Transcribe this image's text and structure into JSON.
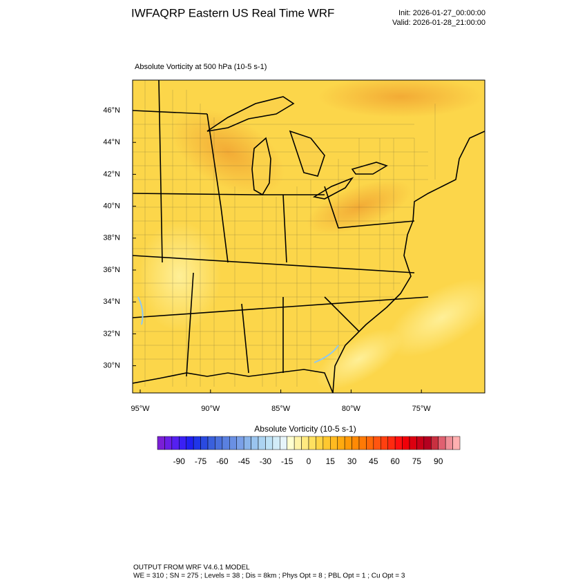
{
  "header": {
    "title": "IWFAQRP Eastern US Real Time WRF",
    "init": "Init: 2026-01-27_00:00:00",
    "valid": "Valid: 2026-01-28_21:00:00"
  },
  "map": {
    "title": "Absolute Vorticity at 500 hPa   (10-5 s-1)",
    "lat_labels": [
      "46°N",
      "44°N",
      "42°N",
      "40°N",
      "38°N",
      "36°N",
      "34°N",
      "32°N",
      "30°N"
    ],
    "lon_labels": [
      "95°W",
      "90°W",
      "85°W",
      "80°W",
      "75°W"
    ]
  },
  "colorbar": {
    "title": "Absolute Vorticity  (10-5 s-1)",
    "labels": [
      -90,
      -75,
      -60,
      -45,
      -30,
      -15,
      0,
      15,
      30,
      45,
      60,
      75,
      90
    ],
    "colors": [
      "#7a1fd6",
      "#6a1fe6",
      "#5520f0",
      "#3a20f5",
      "#2020f0",
      "#2035e8",
      "#2a4ae0",
      "#3a60dc",
      "#4a70dc",
      "#5a80e0",
      "#6a90e4",
      "#7aa0e8",
      "#8ab4ea",
      "#9ac4ee",
      "#acd4f2",
      "#bee2f6",
      "#d2ecf8",
      "#e6f4fa",
      "#ffffd0",
      "#fff4a8",
      "#ffea80",
      "#ffe060",
      "#ffd445",
      "#ffc830",
      "#ffba20",
      "#ffaa10",
      "#ff9a08",
      "#ff8a05",
      "#ff7a05",
      "#ff6808",
      "#ff5510",
      "#ff4010",
      "#ff2a10",
      "#ff1010",
      "#f00008",
      "#dc0010",
      "#c80018",
      "#b40020",
      "#c83040",
      "#e06070",
      "#f09098",
      "#ffb0b0"
    ]
  },
  "footer": {
    "line1": "OUTPUT FROM WRF V4.6.1 MODEL",
    "line2": "WE = 310 ; SN = 275 ; Levels = 38 ; Dis = 8km ; Phys Opt = 8 ; PBL Opt = 1 ; Cu Opt = 3"
  }
}
